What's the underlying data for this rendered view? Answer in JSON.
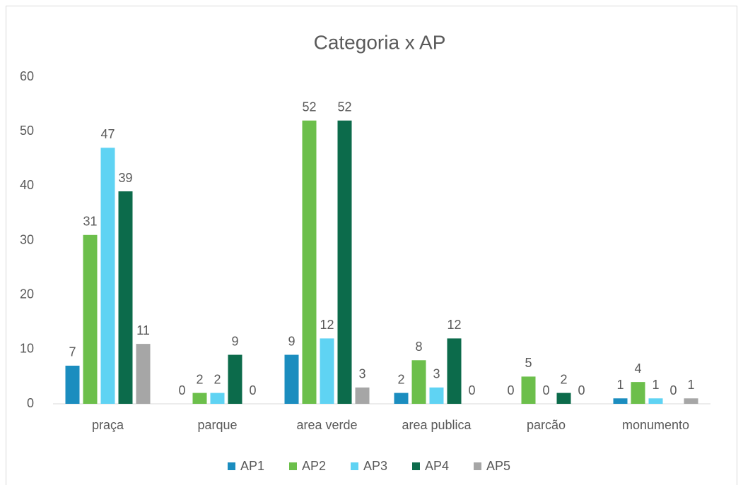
{
  "chart_data": {
    "type": "bar",
    "title": "Categoria x AP",
    "categories": [
      "praça",
      "parque",
      "area verde",
      "area publica",
      "parcão",
      "monumento"
    ],
    "series": [
      {
        "name": "AP1",
        "color": "#1b8dbf",
        "values": [
          7,
          0,
          9,
          2,
          0,
          1
        ]
      },
      {
        "name": "AP2",
        "color": "#6cbf4b",
        "values": [
          31,
          2,
          52,
          8,
          5,
          4
        ]
      },
      {
        "name": "AP3",
        "color": "#5fd3f3",
        "values": [
          47,
          2,
          12,
          3,
          0,
          1
        ]
      },
      {
        "name": "AP4",
        "color": "#0c6b4b",
        "values": [
          39,
          9,
          52,
          12,
          2,
          0
        ]
      },
      {
        "name": "AP5",
        "color": "#a6a6a6",
        "values": [
          11,
          0,
          3,
          0,
          0,
          1
        ]
      }
    ],
    "ylim": [
      0,
      60
    ],
    "yticks": [
      0,
      10,
      20,
      30,
      40,
      50,
      60
    ],
    "grid": false,
    "legend": "bottom"
  }
}
